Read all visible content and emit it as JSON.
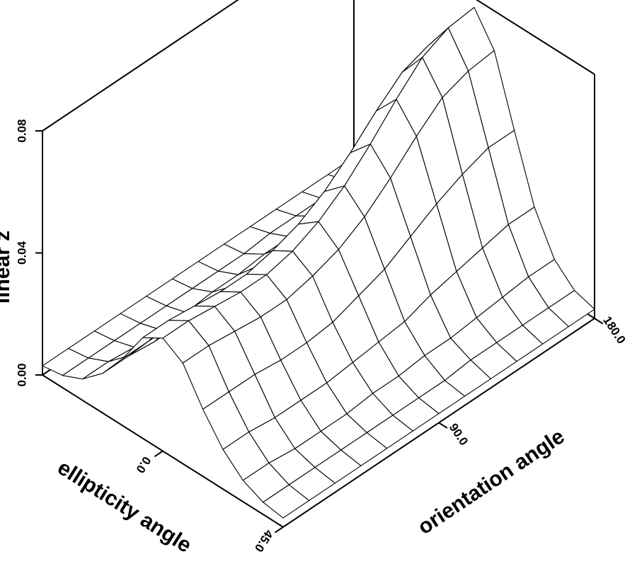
{
  "chart_data": {
    "type": "surface",
    "zlabel": "linear z",
    "xlabel": "ellipticity angle",
    "ylabel": "orientation angle",
    "x": [
      -45,
      -37.5,
      -30,
      -22.5,
      -15,
      -7.5,
      0,
      7.5,
      15,
      22.5,
      30,
      37.5,
      45
    ],
    "y": [
      0,
      15,
      30,
      45,
      60,
      75,
      90,
      105,
      120,
      135,
      150,
      165,
      180
    ],
    "z": [
      [
        0.003,
        0.004,
        0.007,
        0.013,
        0.022,
        0.033,
        0.037,
        0.033,
        0.022,
        0.013,
        0.007,
        0.004,
        0.003
      ],
      [
        0.003,
        0.004,
        0.007,
        0.013,
        0.022,
        0.033,
        0.037,
        0.033,
        0.022,
        0.013,
        0.007,
        0.004,
        0.003
      ],
      [
        0.003,
        0.004,
        0.006,
        0.012,
        0.022,
        0.032,
        0.036,
        0.032,
        0.022,
        0.012,
        0.006,
        0.004,
        0.003
      ],
      [
        0.003,
        0.004,
        0.006,
        0.012,
        0.021,
        0.031,
        0.035,
        0.031,
        0.021,
        0.012,
        0.006,
        0.004,
        0.003
      ],
      [
        0.003,
        0.004,
        0.006,
        0.012,
        0.021,
        0.031,
        0.035,
        0.031,
        0.021,
        0.012,
        0.006,
        0.004,
        0.003
      ],
      [
        0.003,
        0.004,
        0.007,
        0.013,
        0.022,
        0.033,
        0.037,
        0.033,
        0.022,
        0.013,
        0.007,
        0.004,
        0.003
      ],
      [
        0.003,
        0.004,
        0.007,
        0.014,
        0.025,
        0.036,
        0.041,
        0.036,
        0.025,
        0.014,
        0.007,
        0.004,
        0.003
      ],
      [
        0.003,
        0.004,
        0.008,
        0.015,
        0.028,
        0.041,
        0.047,
        0.041,
        0.028,
        0.015,
        0.008,
        0.004,
        0.003
      ],
      [
        0.003,
        0.005,
        0.008,
        0.018,
        0.033,
        0.048,
        0.055,
        0.048,
        0.033,
        0.018,
        0.008,
        0.005,
        0.003
      ],
      [
        0.003,
        0.005,
        0.009,
        0.02,
        0.038,
        0.056,
        0.064,
        0.056,
        0.038,
        0.02,
        0.009,
        0.005,
        0.003
      ],
      [
        0.003,
        0.005,
        0.01,
        0.022,
        0.042,
        0.063,
        0.072,
        0.063,
        0.042,
        0.022,
        0.01,
        0.005,
        0.003
      ],
      [
        0.003,
        0.005,
        0.011,
        0.024,
        0.045,
        0.066,
        0.076,
        0.066,
        0.045,
        0.024,
        0.011,
        0.005,
        0.003
      ],
      [
        0.003,
        0.005,
        0.011,
        0.024,
        0.045,
        0.067,
        0.077,
        0.067,
        0.045,
        0.024,
        0.011,
        0.005,
        0.003
      ]
    ],
    "xlim": [
      -45,
      45
    ],
    "ylim": [
      0,
      180
    ],
    "zlim": [
      0,
      0.08
    ],
    "xticks": [
      {
        "value": 0,
        "label": "0.0"
      },
      {
        "value": 45,
        "label": "45.0"
      }
    ],
    "yticks": [
      {
        "value": 90,
        "label": "90.0"
      },
      {
        "value": 180,
        "label": "180.0"
      }
    ],
    "zticks": [
      {
        "value": 0,
        "label": "0.00"
      },
      {
        "value": 0.04,
        "label": "0.04"
      },
      {
        "value": 0.08,
        "label": "0.08"
      }
    ]
  }
}
